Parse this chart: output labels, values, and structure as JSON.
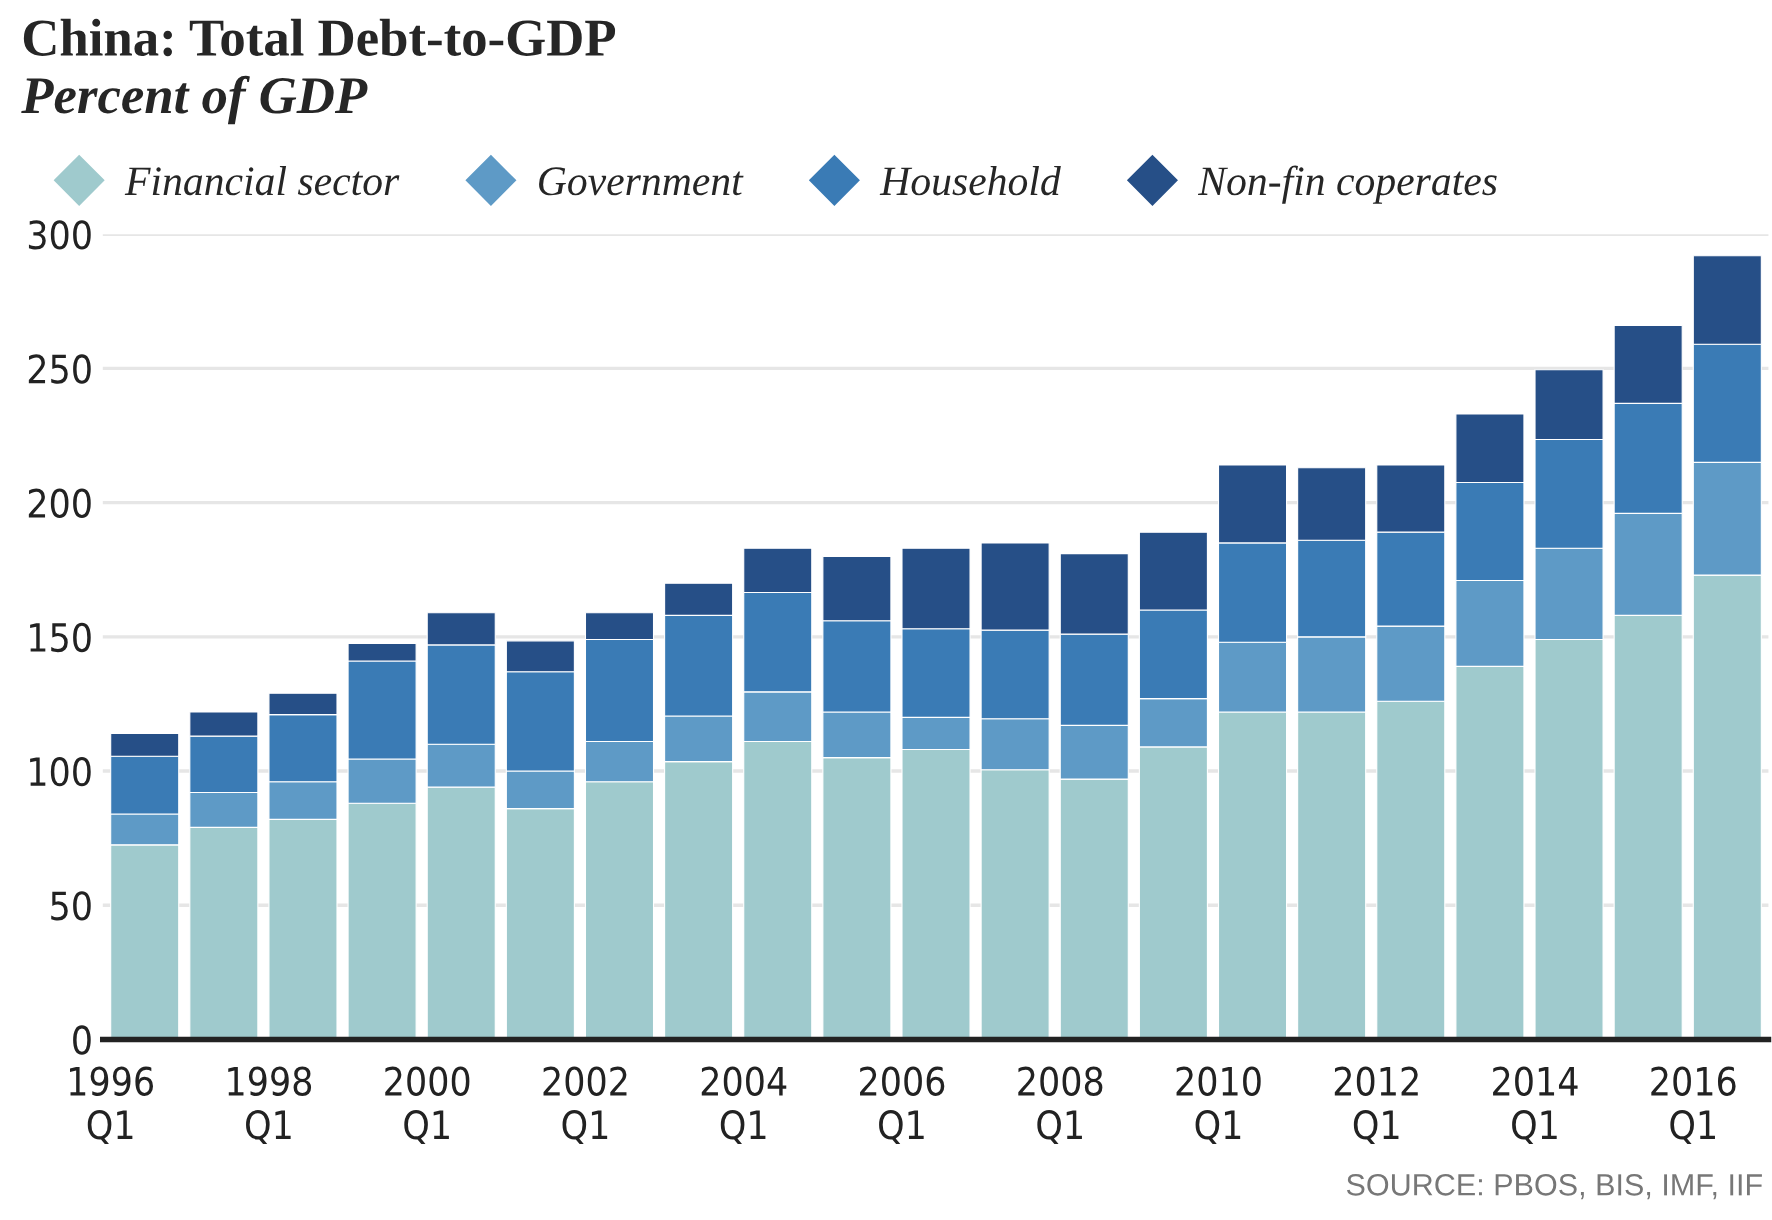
{
  "chart_data": {
    "type": "bar",
    "title": "China: Total Debt-to-GDP",
    "subtitle": "Percent of GDP",
    "categories": [
      "1996\nQ1",
      null,
      "1998\nQ1",
      null,
      "2000\nQ1",
      null,
      "2002\nQ1",
      null,
      "2004\nQ1",
      null,
      "2006\nQ1",
      null,
      "2008\nQ1",
      null,
      "2010\nQ1",
      null,
      "2012\nQ1",
      null,
      "2014\nQ1",
      null,
      "2016\nQ1"
    ],
    "stacked": true,
    "series": [
      {
        "name": "Financial sector",
        "color": "#9fcacd",
        "values": [
          72.5,
          79,
          82,
          88,
          94,
          86,
          96,
          103.5,
          111,
          105,
          108,
          100.5,
          97,
          109,
          122,
          122,
          126,
          139,
          149,
          158,
          173
        ]
      },
      {
        "name": "Government",
        "color": "#5e9ac6",
        "values": [
          11.5,
          13,
          14,
          16.5,
          16,
          14,
          15,
          17,
          18.5,
          17,
          12,
          19,
          20,
          18,
          26,
          28,
          28,
          32,
          34,
          38,
          42
        ]
      },
      {
        "name": "Household",
        "color": "#3a7bb5",
        "values": [
          21.5,
          21,
          25,
          36.5,
          37,
          37,
          38,
          37.5,
          37,
          34,
          33,
          33,
          34,
          33,
          37,
          36,
          35,
          36.5,
          40.5,
          41,
          44
        ]
      },
      {
        "name": "Non-fin coperates",
        "color": "#264f87",
        "values": [
          8.5,
          9,
          8,
          6.5,
          12,
          11.5,
          10,
          12,
          16.5,
          24,
          30,
          32.5,
          30,
          29,
          29,
          27,
          25,
          25.5,
          26,
          29,
          33
        ]
      }
    ],
    "ylim": [
      0,
      300
    ],
    "yticks": [
      0,
      50,
      100,
      150,
      200,
      250,
      300
    ],
    "grid": "y",
    "legend": "top",
    "marker": "diamond",
    "annotations": [
      "SOURCE: PBOS, BIS, IMF, IIF"
    ]
  }
}
